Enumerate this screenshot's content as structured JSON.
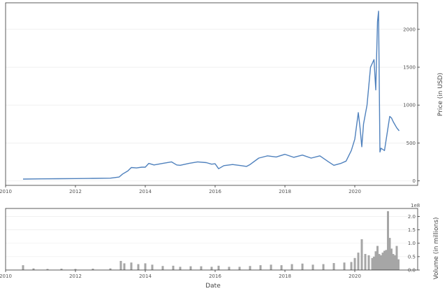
{
  "chart_data": [
    {
      "type": "line",
      "panel": "price",
      "ylabel": "Price (in USD)",
      "xlim": [
        2010,
        2021.8
      ],
      "ylim": [
        -60,
        2350
      ],
      "yticks": [
        0,
        500,
        1000,
        1500,
        2000
      ],
      "xticks": [
        2010,
        2012,
        2014,
        2016,
        2018,
        2020
      ],
      "grid": true,
      "color": "#4f81bd",
      "x": [
        2010.5,
        2011.0,
        2011.5,
        2012.0,
        2012.5,
        2013.0,
        2013.25,
        2013.35,
        2013.5,
        2013.6,
        2013.75,
        2013.9,
        2014.0,
        2014.1,
        2014.25,
        2014.5,
        2014.75,
        2014.9,
        2015.0,
        2015.25,
        2015.5,
        2015.75,
        2015.9,
        2016.0,
        2016.1,
        2016.25,
        2016.5,
        2016.75,
        2016.9,
        2017.0,
        2017.25,
        2017.5,
        2017.75,
        2018.0,
        2018.25,
        2018.5,
        2018.75,
        2019.0,
        2019.25,
        2019.4,
        2019.6,
        2019.75,
        2019.9,
        2020.0,
        2020.1,
        2020.15,
        2020.2,
        2020.25,
        2020.35,
        2020.45,
        2020.55,
        2020.6,
        2020.65,
        2020.68,
        2020.72,
        2020.75,
        2020.85,
        2021.0,
        2021.05,
        2021.1,
        2021.2,
        2021.27
      ],
      "y": [
        23,
        26,
        28,
        30,
        32,
        35,
        50,
        90,
        130,
        175,
        170,
        180,
        180,
        230,
        210,
        230,
        250,
        210,
        205,
        230,
        250,
        240,
        220,
        225,
        160,
        200,
        215,
        200,
        190,
        215,
        300,
        330,
        315,
        350,
        310,
        340,
        300,
        330,
        250,
        205,
        230,
        260,
        400,
        550,
        900,
        700,
        450,
        750,
        1000,
        1500,
        1600,
        1200,
        2100,
        2240,
        380,
        430,
        400,
        850,
        830,
        780,
        700,
        660
      ]
    },
    {
      "type": "bar",
      "panel": "volume",
      "ylabel": "Volume (in millions)",
      "xlabel": "Date",
      "offset_text": "1e8",
      "xlim": [
        2010,
        2021.8
      ],
      "ylim": [
        0,
        2.3
      ],
      "yticks": [
        0.0,
        0.5,
        1.0,
        1.5,
        2.0
      ],
      "xticks": [
        2010,
        2012,
        2014,
        2016,
        2018,
        2020
      ],
      "grid": true,
      "color": "#a6a6a6",
      "x": [
        2010.5,
        2010.8,
        2011.2,
        2011.6,
        2012.0,
        2012.5,
        2013.0,
        2013.3,
        2013.4,
        2013.6,
        2013.8,
        2014.0,
        2014.2,
        2014.5,
        2014.8,
        2015.0,
        2015.3,
        2015.6,
        2015.9,
        2016.1,
        2016.4,
        2016.7,
        2017.0,
        2017.3,
        2017.6,
        2017.9,
        2018.2,
        2018.5,
        2018.8,
        2019.1,
        2019.4,
        2019.7,
        2019.9,
        2020.0,
        2020.1,
        2020.2,
        2020.3,
        2020.4,
        2020.5,
        2020.55,
        2020.6,
        2020.65,
        2020.7,
        2020.75,
        2020.8,
        2020.85,
        2020.9,
        2020.95,
        2021.0,
        2021.05,
        2021.1,
        2021.15,
        2021.2,
        2021.25
      ],
      "values": [
        0.18,
        0.06,
        0.04,
        0.05,
        0.04,
        0.05,
        0.06,
        0.34,
        0.25,
        0.28,
        0.22,
        0.25,
        0.2,
        0.15,
        0.16,
        0.12,
        0.14,
        0.14,
        0.12,
        0.16,
        0.12,
        0.12,
        0.15,
        0.18,
        0.2,
        0.18,
        0.22,
        0.24,
        0.2,
        0.22,
        0.26,
        0.28,
        0.3,
        0.45,
        0.65,
        1.15,
        0.6,
        0.55,
        0.45,
        0.5,
        0.7,
        0.9,
        0.6,
        0.55,
        0.65,
        0.72,
        0.75,
        2.2,
        1.2,
        0.8,
        0.6,
        0.55,
        0.9,
        0.4
      ]
    }
  ]
}
